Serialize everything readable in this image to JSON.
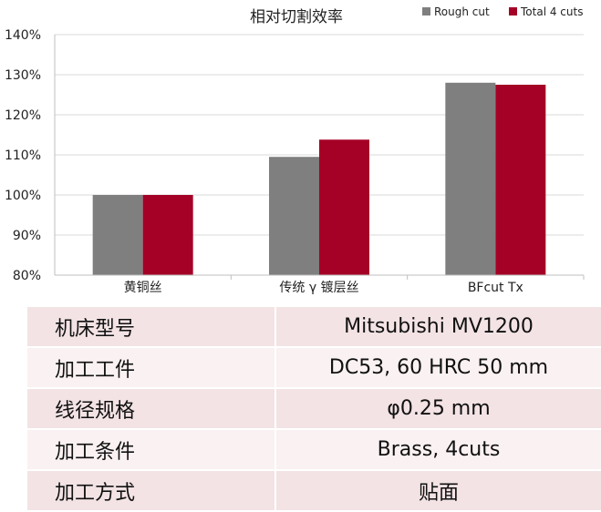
{
  "colors": {
    "rough": "#7f7f7f",
    "total": "#a50026",
    "axis": "#bfbfbf",
    "grid": "#d9d9d9"
  },
  "chart_data": {
    "type": "bar",
    "title": "相对切割效率",
    "categories": [
      "黄铜丝",
      "传统 γ 镀层丝",
      "BFcut Tx"
    ],
    "series": [
      {
        "name": "Rough cut",
        "color": "#7f7f7f",
        "values": [
          100,
          109.5,
          128
        ]
      },
      {
        "name": "Total 4 cuts",
        "color": "#a50026",
        "values": [
          100,
          113.8,
          127.5
        ]
      }
    ],
    "ylim": [
      80,
      140
    ],
    "yticks": [
      "80%",
      "90%",
      "100%",
      "110%",
      "120%",
      "130%",
      "140%"
    ],
    "ytick_values": [
      80,
      90,
      100,
      110,
      120,
      130,
      140
    ],
    "legend": "top-right",
    "grid": "horizontal"
  },
  "spec_table": {
    "rows": [
      {
        "key": "机床型号",
        "value": "Mitsubishi MV1200"
      },
      {
        "key": "加工工件",
        "value": "DC53, 60 HRC  50 mm"
      },
      {
        "key": "线径规格",
        "value": "φ0.25 mm"
      },
      {
        "key": "加工条件",
        "value": "Brass, 4cuts"
      },
      {
        "key": "加工方式",
        "value": "贴面"
      }
    ]
  }
}
